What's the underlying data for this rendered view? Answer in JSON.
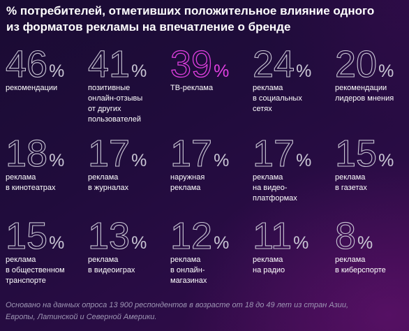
{
  "colors": {
    "background_dark": "#1a0b33",
    "background_purple": "#3a0b4c",
    "number_stroke": "#c9c6d4",
    "accent": "#e040e0",
    "footnote": "#9e97b4"
  },
  "title_line1": "% потребителей, отметивших положительное влияние одного",
  "title_line2": "из форматов рекламы на впечатление о бренде",
  "footnote_line1": "Основано на данных опроса 13 900 респондентов в возрасте от 18 до 49 лет из стран Азии,",
  "footnote_line2": "Европы, Латинской и Северной Америки.",
  "chart_data": {
    "type": "table",
    "unit": "%",
    "items": [
      {
        "value": 46,
        "label_lines": [
          "рекомендации"
        ],
        "highlight": false
      },
      {
        "value": 41,
        "label_lines": [
          "позитивные",
          "онлайн-отзывы",
          "от других",
          "пользователей"
        ],
        "highlight": false
      },
      {
        "value": 39,
        "label_lines": [
          "ТВ-реклама"
        ],
        "highlight": true
      },
      {
        "value": 24,
        "label_lines": [
          "реклама",
          "в социальных",
          "сетях"
        ],
        "highlight": false
      },
      {
        "value": 20,
        "label_lines": [
          "рекомендации",
          "лидеров мнения"
        ],
        "highlight": false
      },
      {
        "value": 18,
        "label_lines": [
          "реклама",
          "в кинотеатрах"
        ],
        "highlight": false
      },
      {
        "value": 17,
        "label_lines": [
          "реклама",
          "в журналах"
        ],
        "highlight": false
      },
      {
        "value": 17,
        "label_lines": [
          "наружная",
          "реклама"
        ],
        "highlight": false
      },
      {
        "value": 17,
        "label_lines": [
          "реклама",
          "на видео-",
          "платформах"
        ],
        "highlight": false
      },
      {
        "value": 15,
        "label_lines": [
          "реклама",
          "в газетах"
        ],
        "highlight": false
      },
      {
        "value": 15,
        "label_lines": [
          "реклама",
          "в общественном",
          "транспорте"
        ],
        "highlight": false
      },
      {
        "value": 13,
        "label_lines": [
          "реклама",
          "в видеоиграх"
        ],
        "highlight": false
      },
      {
        "value": 12,
        "label_lines": [
          "реклама",
          "в онлайн-",
          "магазинах"
        ],
        "highlight": false
      },
      {
        "value": 11,
        "label_lines": [
          "реклама",
          "на радио"
        ],
        "highlight": false
      },
      {
        "value": 8,
        "label_lines": [
          "реклама",
          "в киберспорте"
        ],
        "highlight": false
      }
    ]
  }
}
